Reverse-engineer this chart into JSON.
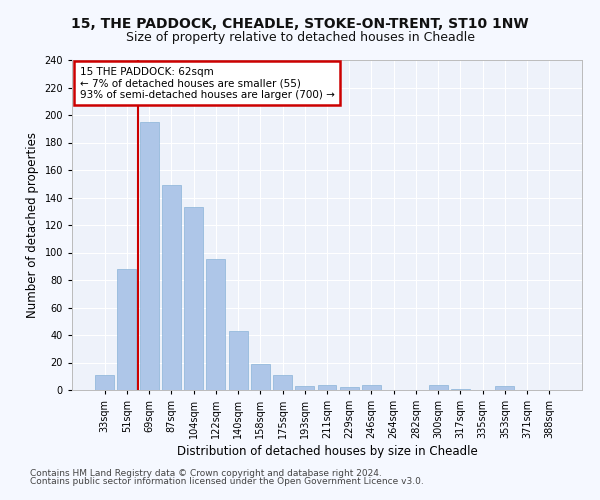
{
  "title1": "15, THE PADDOCK, CHEADLE, STOKE-ON-TRENT, ST10 1NW",
  "title2": "Size of property relative to detached houses in Cheadle",
  "xlabel": "Distribution of detached houses by size in Cheadle",
  "ylabel": "Number of detached properties",
  "categories": [
    "33sqm",
    "51sqm",
    "69sqm",
    "87sqm",
    "104sqm",
    "122sqm",
    "140sqm",
    "158sqm",
    "175sqm",
    "193sqm",
    "211sqm",
    "229sqm",
    "246sqm",
    "264sqm",
    "282sqm",
    "300sqm",
    "317sqm",
    "335sqm",
    "353sqm",
    "371sqm",
    "388sqm"
  ],
  "values": [
    11,
    88,
    195,
    149,
    133,
    95,
    43,
    19,
    11,
    3,
    4,
    2,
    4,
    0,
    0,
    4,
    1,
    0,
    3,
    0,
    0
  ],
  "bar_color": "#aec6e8",
  "bar_edge_color": "#8ab4d8",
  "annotation_line1": "15 THE PADDOCK: 62sqm",
  "annotation_line2": "← 7% of detached houses are smaller (55)",
  "annotation_line3": "93% of semi-detached houses are larger (700) →",
  "annotation_box_color": "#ffffff",
  "annotation_box_edge_color": "#cc0000",
  "vline_color": "#cc0000",
  "vline_x_index": 1.5,
  "ylim": [
    0,
    240
  ],
  "yticks": [
    0,
    20,
    40,
    60,
    80,
    100,
    120,
    140,
    160,
    180,
    200,
    220,
    240
  ],
  "footnote1": "Contains HM Land Registry data © Crown copyright and database right 2024.",
  "footnote2": "Contains public sector information licensed under the Open Government Licence v3.0.",
  "bg_color": "#eef2fa",
  "grid_color": "#ffffff",
  "fig_bg_color": "#f5f8ff",
  "title1_fontsize": 10,
  "title2_fontsize": 9,
  "xlabel_fontsize": 8.5,
  "ylabel_fontsize": 8.5,
  "tick_fontsize": 7,
  "annotation_fontsize": 7.5,
  "footnote_fontsize": 6.5
}
